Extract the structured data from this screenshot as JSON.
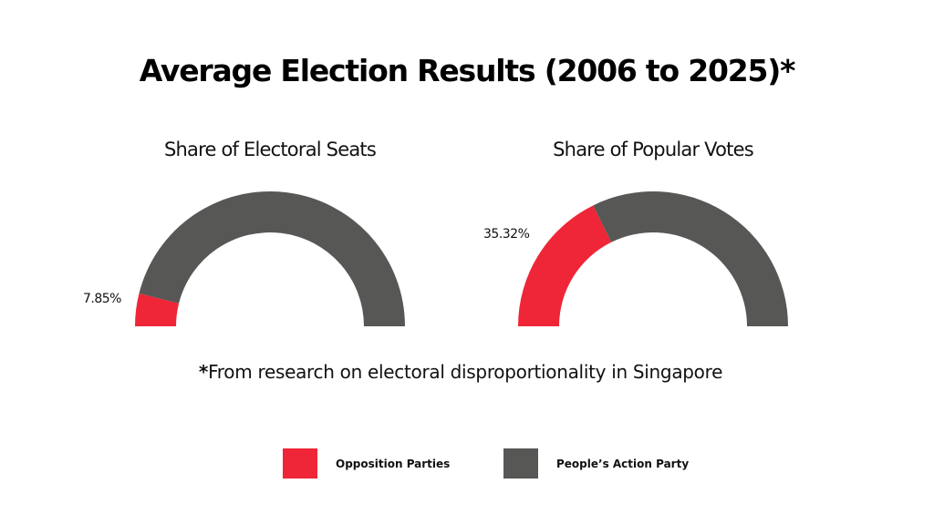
{
  "title": "Average Election Results (2006 to 2025)*",
  "footnote": {
    "star": "*",
    "text": "From research on electoral disproportionality in Singapore"
  },
  "colors": {
    "opposition": "#ee2638",
    "pap": "#575756"
  },
  "chart_data": [
    {
      "type": "pie",
      "style": "semi-donut",
      "title": "Share of Electoral Seats",
      "categories": [
        "Opposition Parties",
        "People’s Action Party"
      ],
      "values": [
        7.85,
        92.15
      ],
      "label": "7.85%"
    },
    {
      "type": "pie",
      "style": "semi-donut",
      "title": "Share of Popular Votes",
      "categories": [
        "Opposition Parties",
        "People’s Action Party"
      ],
      "values": [
        35.32,
        64.68
      ],
      "label": "35.32%"
    }
  ],
  "legend": {
    "placement": "bottom-center",
    "items": [
      {
        "label": "Opposition Parties",
        "color": "#ee2638"
      },
      {
        "label": "People’s Action Party",
        "color": "#575756"
      }
    ]
  }
}
